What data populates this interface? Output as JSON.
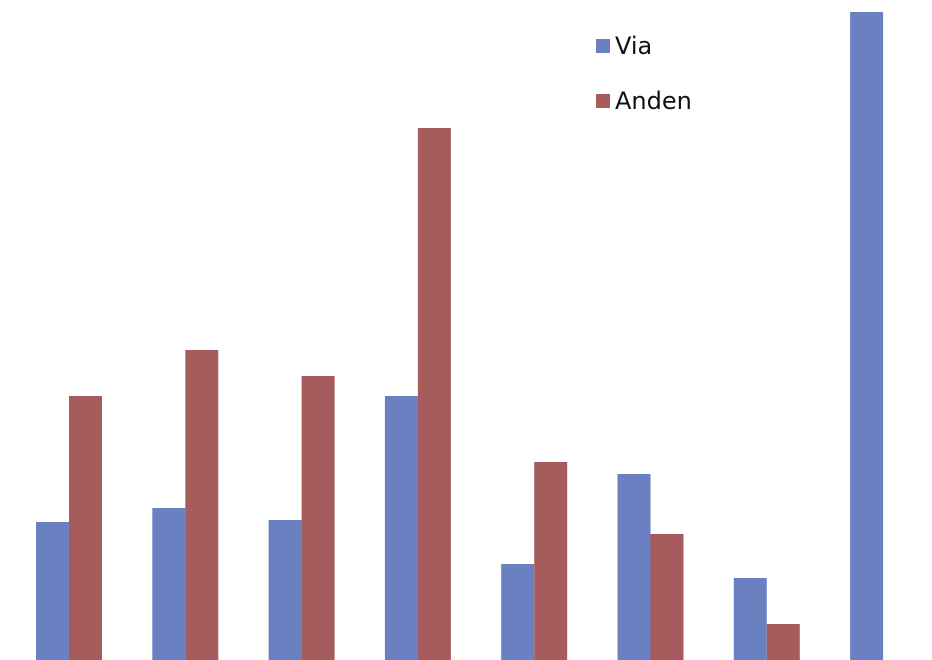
{
  "chart_data": {
    "type": "bar",
    "categories": [
      "",
      "",
      "",
      "",
      "",
      "",
      "",
      ""
    ],
    "series": [
      {
        "name": "Via",
        "color": "#6b80c0",
        "values": [
          138,
          152,
          140,
          264,
          96,
          186,
          82,
          648
        ]
      },
      {
        "name": "Anden",
        "color": "#a65c5c",
        "values": [
          264,
          310,
          284,
          532,
          198,
          126,
          36,
          0
        ]
      }
    ],
    "ylim": [
      0,
      648
    ],
    "legend_position": "top-right",
    "grid": false
  }
}
